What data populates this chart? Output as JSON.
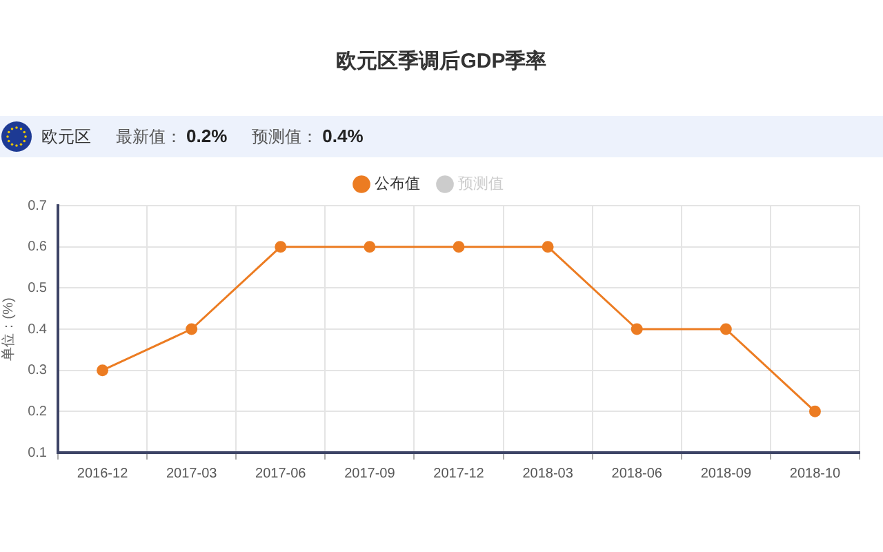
{
  "chart_data": {
    "type": "line",
    "title": "欧元区季调后GDP季率",
    "ylabel": "单位：(%)",
    "annotations": [
      "欧元区",
      "最新值：0.2%",
      "预测值：0.4%"
    ],
    "categories": [
      "2016-12",
      "2017-03",
      "2017-06",
      "2017-09",
      "2017-12",
      "2018-03",
      "2018-06",
      "2018-09",
      "2018-10"
    ],
    "series": [
      {
        "name": "公布值",
        "color": "#ec7c22",
        "values": [
          0.3,
          0.4,
          0.6,
          0.6,
          0.6,
          0.6,
          0.4,
          0.4,
          0.2
        ]
      },
      {
        "name": "预测值",
        "color": "#cccccc",
        "values": [
          null,
          null,
          null,
          null,
          null,
          null,
          null,
          null,
          null
        ]
      }
    ],
    "ylim": [
      0.1,
      0.7
    ],
    "yticks": [
      0.1,
      0.2,
      0.3,
      0.4,
      0.5,
      0.6,
      0.7
    ],
    "grid": true,
    "legend": "top",
    "marker": "circle",
    "line_style": "solid"
  }
}
